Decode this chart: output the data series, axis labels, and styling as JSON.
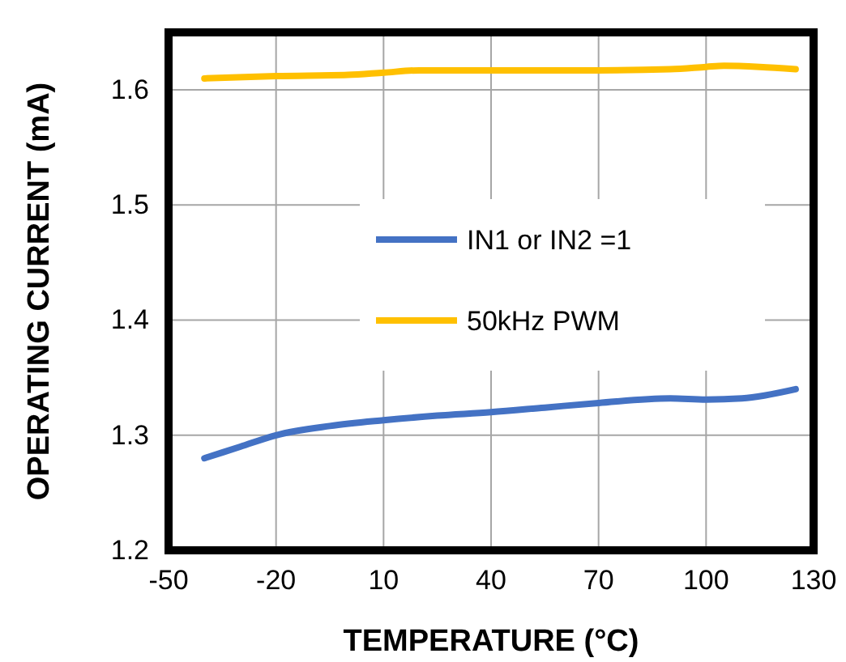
{
  "chart_data": {
    "type": "line",
    "xlabel": "TEMPERATURE (°C)",
    "ylabel": "OPERATING CURRENT (mA)",
    "xlim": [
      -50,
      130
    ],
    "xticks": [
      -50,
      -20,
      10,
      40,
      70,
      100,
      130
    ],
    "ylim": [
      1.2,
      1.65
    ],
    "yticks": [
      1.2,
      1.3,
      1.4,
      1.5,
      1.6
    ],
    "grid": true,
    "legend": "right",
    "marker": "none",
    "line_style": "solid",
    "series": [
      {
        "name": "IN1 or IN2 =1",
        "color": "#4472c4",
        "x": [
          -40,
          -30,
          -20,
          -5,
          10,
          25,
          40,
          55,
          70,
          90,
          100,
          110,
          125
        ],
        "values": [
          1.28,
          1.29,
          1.3,
          1.308,
          1.313,
          1.317,
          1.32,
          1.324,
          1.328,
          1.332,
          1.331,
          1.332,
          1.34
        ]
      },
      {
        "name": "50kHz PWM",
        "color": "#ffc000",
        "x": [
          -40,
          -20,
          0,
          10,
          20,
          40,
          70,
          90,
          100,
          105,
          115,
          125
        ],
        "values": [
          1.61,
          1.612,
          1.613,
          1.615,
          1.617,
          1.617,
          1.617,
          1.618,
          1.62,
          1.621,
          1.62,
          1.618
        ]
      }
    ]
  }
}
